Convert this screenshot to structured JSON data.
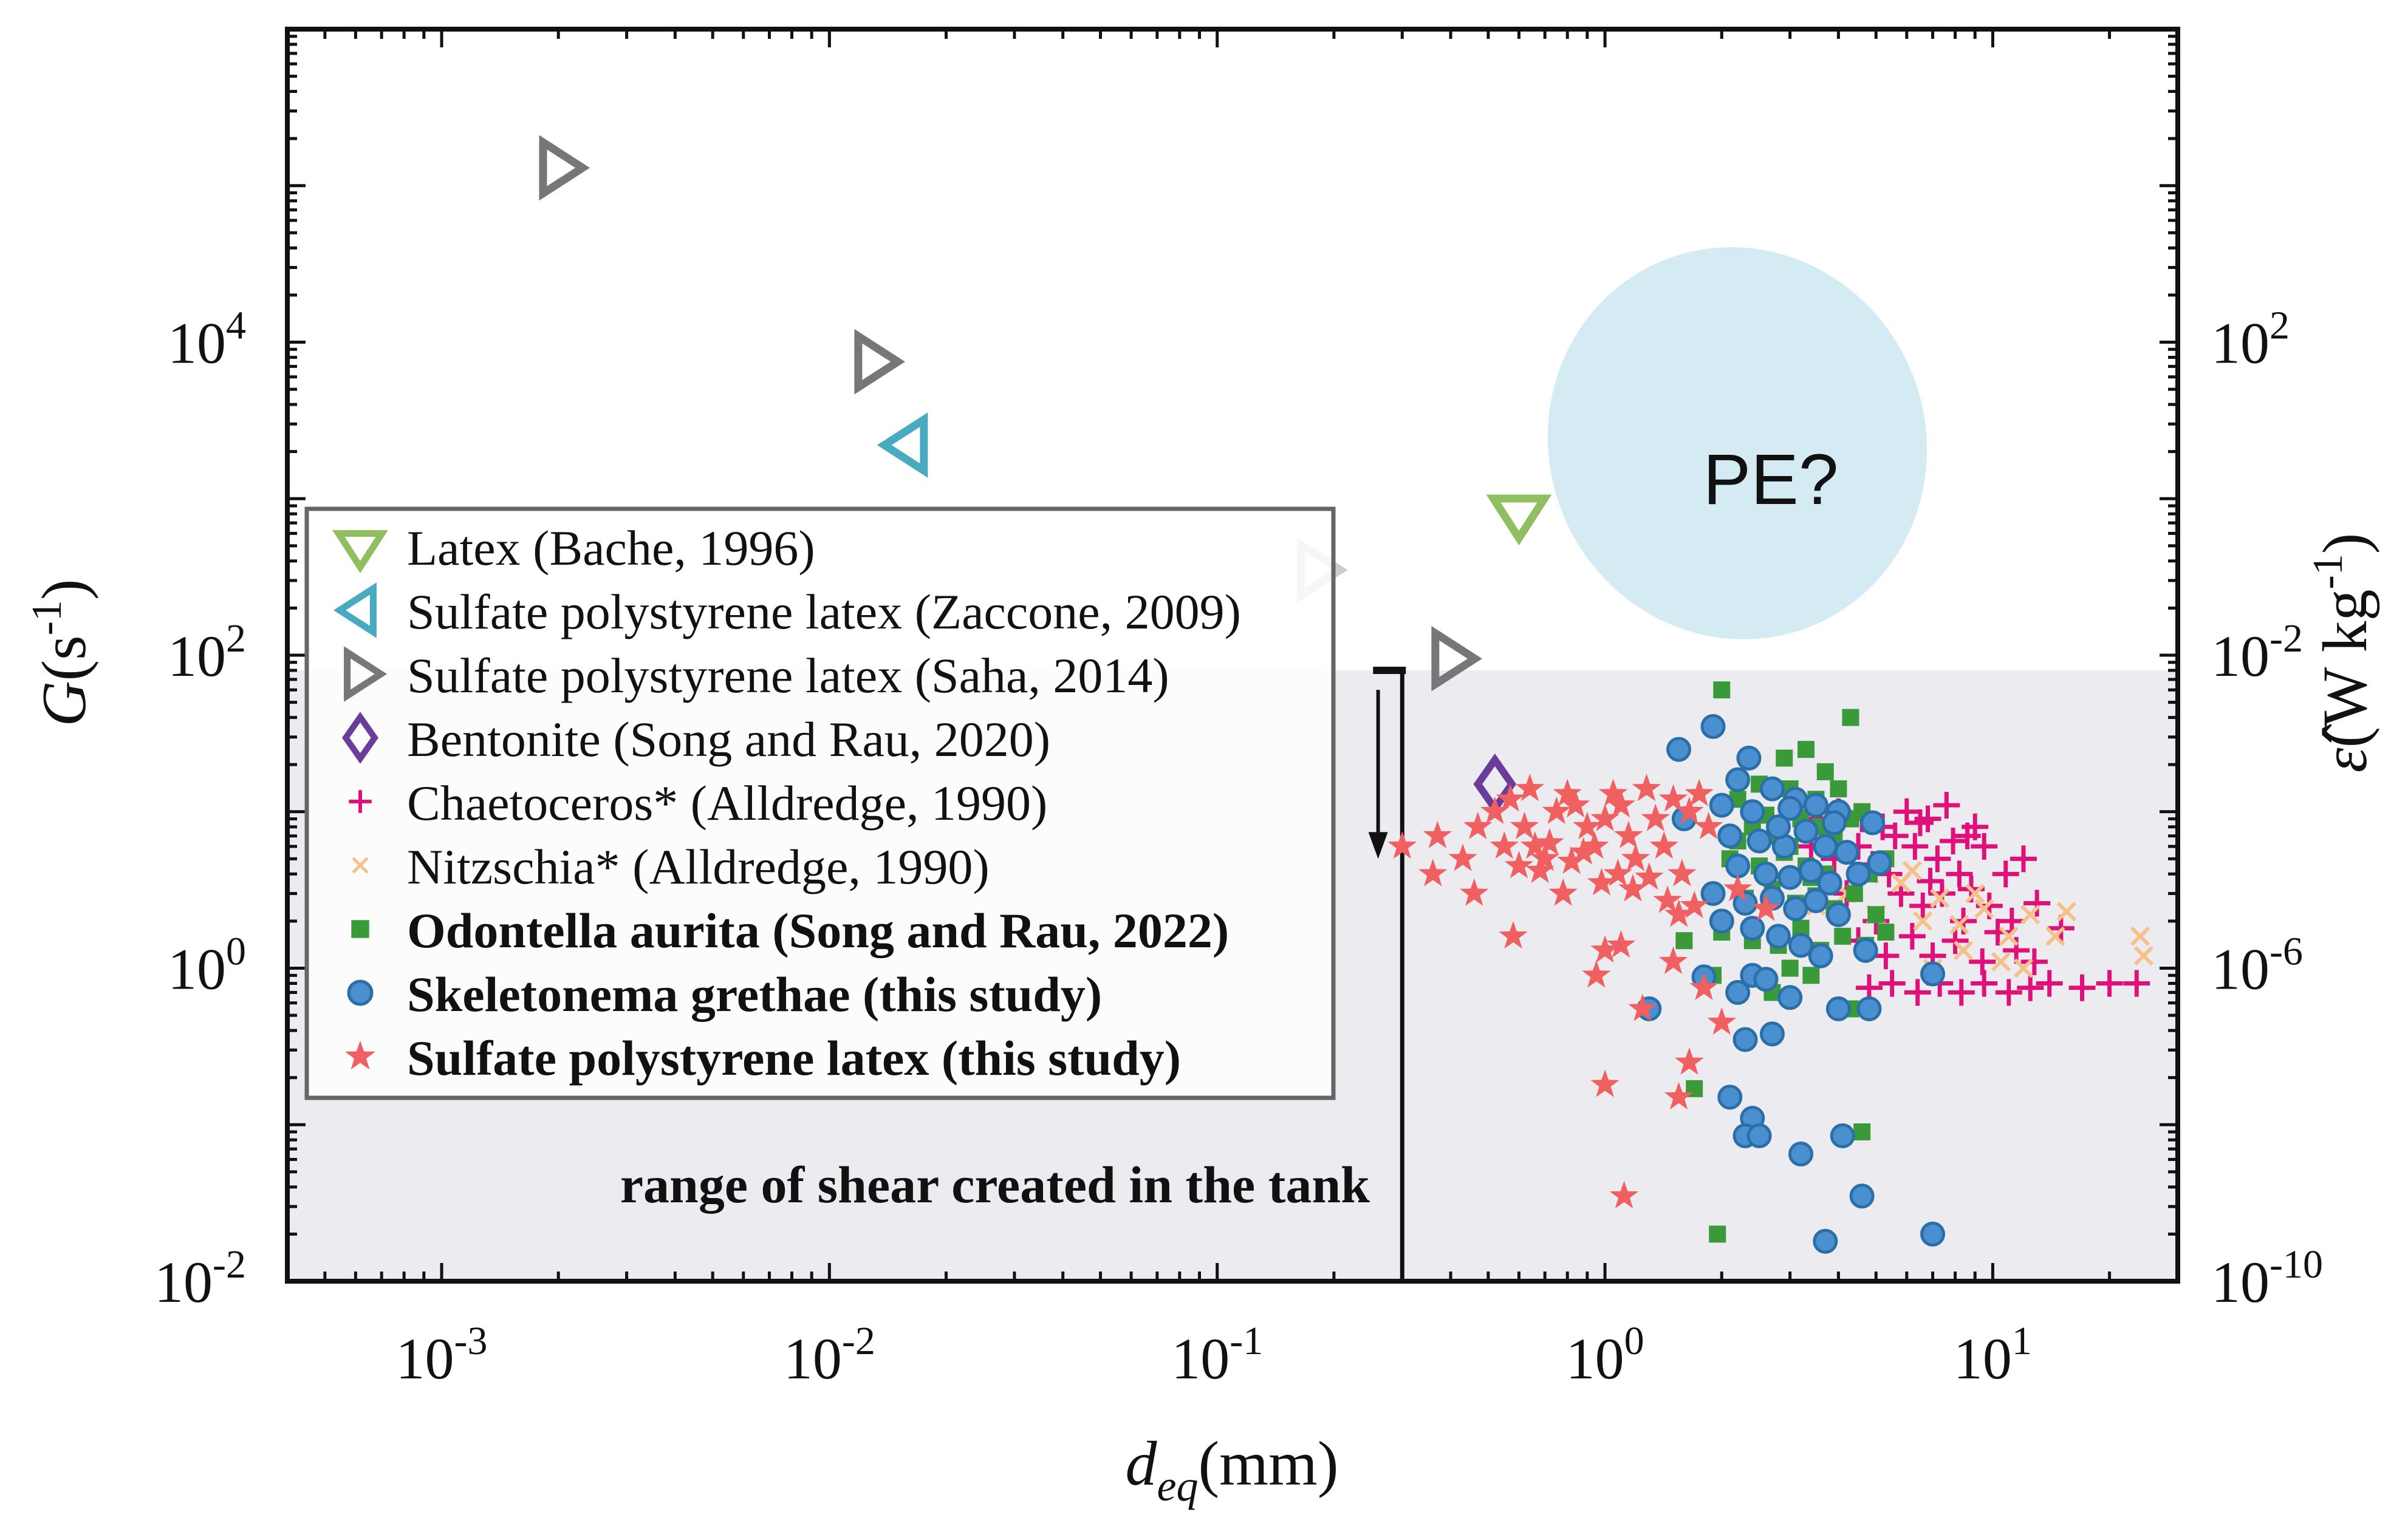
{
  "chart_data": {
    "type": "scatter",
    "title": "",
    "xlabel": {
      "main": "d",
      "sub": "eq",
      "unit": "(mm)"
    },
    "ylabel": {
      "main": "G",
      "unit": "(s",
      "sup": "-1",
      "close": ")"
    },
    "y2label": {
      "main": "ε̂",
      "unit": "(W kg",
      "sup": "-1",
      "close": ")"
    },
    "x_scale": "log",
    "y_scale": "log",
    "xlim": [
      0.0004,
      30
    ],
    "ylim": [
      0.01,
      1000000
    ],
    "x_ticks": [
      {
        "base": "10",
        "exp": "-3",
        "value": 0.001
      },
      {
        "base": "10",
        "exp": "-2",
        "value": 0.01
      },
      {
        "base": "10",
        "exp": "-1",
        "value": 0.1
      },
      {
        "base": "10",
        "exp": "0",
        "value": 1
      },
      {
        "base": "10",
        "exp": "1",
        "value": 10
      }
    ],
    "y_ticks": [
      {
        "base": "10",
        "exp": "-2",
        "value": 0.01
      },
      {
        "base": "10",
        "exp": "0",
        "value": 1
      },
      {
        "base": "10",
        "exp": "2",
        "value": 100
      },
      {
        "base": "10",
        "exp": "4",
        "value": 10000
      }
    ],
    "y2_ticks": [
      {
        "base": "10",
        "exp": "-10",
        "value": 0.01
      },
      {
        "base": "10",
        "exp": "-6",
        "value": 1
      },
      {
        "base": "10",
        "exp": "-2",
        "value": 100
      },
      {
        "base": "10",
        "exp": "2",
        "value": 10000
      }
    ],
    "shaded_region": {
      "label": "range of shear created in the tank",
      "x_min": 0.0004,
      "x_max": 30,
      "y_min": 0.01,
      "y_max": 80,
      "color": "#ececf0"
    },
    "tank_marker": {
      "x": 0.3,
      "y_top": 80,
      "arrow_x": 0.26,
      "arrow_from": 60,
      "arrow_to": 5
    },
    "pe_region": {
      "label": "PE?",
      "x_center": 2.8,
      "y_center": 1300,
      "color": "#d5ebf4"
    },
    "legend_position": "left-middle",
    "series": [
      {
        "name": "Latex (Bache, 1996)",
        "marker": "triangle-down",
        "color": "#8fbf60",
        "bold": false,
        "points": [
          [
            0.6,
            800
          ]
        ]
      },
      {
        "name": "Sulfate polystyrene latex (Zaccone, 2009)",
        "marker": "triangle-left",
        "color": "#4aaabf",
        "bold": false,
        "points": [
          [
            0.016,
            2200
          ]
        ]
      },
      {
        "name": "Sulfate polystyrene latex (Saha, 2014)",
        "marker": "triangle-right",
        "color": "#777777",
        "bold": false,
        "points": [
          [
            0.002,
            130000
          ],
          [
            0.013,
            7500
          ],
          [
            0.4,
            95
          ]
        ]
      },
      {
        "name": "_faint Saha point",
        "marker": "triangle-right",
        "color": "#cccccc",
        "bold": false,
        "legend": false,
        "points": [
          [
            0.18,
            350
          ]
        ]
      },
      {
        "name": "Bentonite (Song and Rau, 2020)",
        "marker": "diamond",
        "color": "#6a3d9a",
        "bold": false,
        "points": [
          [
            0.52,
            15
          ]
        ]
      },
      {
        "name": "Chaetoceros* (Alldredge, 1990)",
        "marker": "plus",
        "color": "#e0107a",
        "bold": false,
        "points": [
          [
            3.2,
            10
          ],
          [
            3.6,
            9
          ],
          [
            4.0,
            10
          ],
          [
            4.6,
            9
          ],
          [
            5.2,
            8
          ],
          [
            6.0,
            10
          ],
          [
            6.8,
            9
          ],
          [
            7.6,
            11
          ],
          [
            8.6,
            7
          ],
          [
            3.4,
            6
          ],
          [
            3.9,
            5
          ],
          [
            4.5,
            6
          ],
          [
            5.4,
            4
          ],
          [
            6.3,
            6
          ],
          [
            7.2,
            5
          ],
          [
            8.2,
            4
          ],
          [
            9.5,
            6
          ],
          [
            10.8,
            4
          ],
          [
            12.0,
            5
          ],
          [
            4.2,
            3
          ],
          [
            5.0,
            2
          ],
          [
            5.8,
            3
          ],
          [
            6.6,
            2.5
          ],
          [
            7.4,
            3
          ],
          [
            8.4,
            2
          ],
          [
            9.8,
            2.5
          ],
          [
            11.2,
            2
          ],
          [
            13.0,
            2.6
          ],
          [
            15.0,
            1.8
          ],
          [
            4.5,
            1.5
          ],
          [
            5.3,
            1.2
          ],
          [
            6.2,
            1.6
          ],
          [
            7.0,
            1.2
          ],
          [
            8.0,
            1.5
          ],
          [
            9.4,
            1.1
          ],
          [
            11.5,
            1.3
          ],
          [
            4.8,
            0.75
          ],
          [
            5.5,
            0.8
          ],
          [
            6.4,
            0.7
          ],
          [
            7.3,
            0.8
          ],
          [
            8.3,
            0.7
          ],
          [
            9.5,
            0.8
          ],
          [
            11.0,
            0.7
          ],
          [
            12.5,
            0.75
          ],
          [
            14.0,
            0.8
          ],
          [
            17.0,
            0.75
          ],
          [
            20.0,
            0.8
          ],
          [
            23.5,
            0.8
          ],
          [
            5.6,
            7
          ],
          [
            6.5,
            8.5
          ],
          [
            7.9,
            6.5
          ],
          [
            9.0,
            8
          ],
          [
            3.7,
            7.5
          ],
          [
            4.9,
            4.6
          ],
          [
            6.9,
            3.6
          ],
          [
            8.8,
            3.2
          ],
          [
            10.3,
            1.7
          ],
          [
            12.8,
            1.1
          ]
        ]
      },
      {
        "name": "Nitzschia* (Alldredge, 1990)",
        "marker": "x",
        "color": "#f5c08a",
        "bold": false,
        "points": [
          [
            3.5,
            2.5
          ],
          [
            4.2,
            3
          ],
          [
            5.0,
            2.2
          ],
          [
            5.8,
            3.5
          ],
          [
            6.6,
            2
          ],
          [
            7.3,
            2.8
          ],
          [
            8.2,
            1.9
          ],
          [
            9.5,
            2.4
          ],
          [
            11.0,
            1.6
          ],
          [
            12.5,
            2.2
          ],
          [
            14.5,
            1.6
          ],
          [
            7.0,
            1.0
          ],
          [
            8.4,
            1.3
          ],
          [
            10.5,
            1.1
          ],
          [
            12.0,
            1.0
          ],
          [
            24.0,
            1.6
          ],
          [
            24.5,
            1.2
          ],
          [
            6.2,
            4.2
          ],
          [
            4.8,
            4.0
          ],
          [
            9.0,
            3.0
          ],
          [
            15.5,
            2.3
          ]
        ]
      },
      {
        "name": "Odontella aurita (Song and Rau, 2022)",
        "marker": "square",
        "color": "#3a9a3a",
        "bold": true,
        "points": [
          [
            2.0,
            60
          ],
          [
            4.3,
            40
          ],
          [
            2.9,
            22
          ],
          [
            3.3,
            25
          ],
          [
            3.7,
            18
          ],
          [
            2.5,
            15
          ],
          [
            2.2,
            12
          ],
          [
            3.0,
            14
          ],
          [
            3.5,
            12
          ],
          [
            4.0,
            14
          ],
          [
            4.6,
            10
          ],
          [
            2.4,
            8
          ],
          [
            2.8,
            7
          ],
          [
            3.2,
            9
          ],
          [
            3.6,
            8
          ],
          [
            3.9,
            7
          ],
          [
            4.3,
            9
          ],
          [
            2.1,
            5
          ],
          [
            2.5,
            4.5
          ],
          [
            2.9,
            5.5
          ],
          [
            3.3,
            4.5
          ],
          [
            3.7,
            4
          ],
          [
            4.2,
            5.5
          ],
          [
            4.8,
            4
          ],
          [
            5.3,
            5
          ],
          [
            1.9,
            3
          ],
          [
            2.3,
            2.8
          ],
          [
            2.7,
            3.2
          ],
          [
            3.1,
            2.6
          ],
          [
            3.5,
            2.9
          ],
          [
            3.9,
            2.4
          ],
          [
            4.4,
            3
          ],
          [
            5.0,
            2.2
          ],
          [
            1.6,
            1.5
          ],
          [
            2.0,
            1.7
          ],
          [
            2.4,
            1.5
          ],
          [
            2.8,
            1.4
          ],
          [
            3.2,
            1.8
          ],
          [
            3.6,
            1.3
          ],
          [
            4.1,
            1.6
          ],
          [
            4.7,
            1.4
          ],
          [
            5.3,
            1.7
          ],
          [
            1.9,
            0.9
          ],
          [
            2.6,
            0.85
          ],
          [
            3.0,
            1.0
          ],
          [
            3.4,
            0.9
          ],
          [
            2.7,
            0.7
          ],
          [
            4.3,
            0.55
          ],
          [
            1.7,
            0.17
          ],
          [
            4.6,
            0.09
          ],
          [
            1.95,
            0.02
          ],
          [
            2.2,
            6.5
          ],
          [
            3.0,
            6
          ],
          [
            3.4,
            3.8
          ],
          [
            2.6,
            9.5
          ]
        ]
      },
      {
        "name": "Skeletonema grethae (this study)",
        "marker": "circle",
        "color": "#4a90d0",
        "bold": true,
        "points": [
          [
            1.9,
            35
          ],
          [
            1.55,
            25
          ],
          [
            2.35,
            22
          ],
          [
            2.2,
            16
          ],
          [
            2.7,
            14
          ],
          [
            3.1,
            12
          ],
          [
            3.5,
            11
          ],
          [
            2.0,
            11
          ],
          [
            2.4,
            10
          ],
          [
            4.0,
            10
          ],
          [
            4.9,
            8.5
          ],
          [
            2.1,
            7
          ],
          [
            2.5,
            6.5
          ],
          [
            2.9,
            6
          ],
          [
            3.3,
            7.5
          ],
          [
            3.7,
            6
          ],
          [
            4.2,
            5.5
          ],
          [
            5.1,
            4.7
          ],
          [
            2.2,
            4.5
          ],
          [
            2.6,
            4
          ],
          [
            3.0,
            3.8
          ],
          [
            3.4,
            4.2
          ],
          [
            3.8,
            3.5
          ],
          [
            4.5,
            4
          ],
          [
            1.9,
            3
          ],
          [
            2.3,
            2.6
          ],
          [
            2.7,
            2.8
          ],
          [
            3.1,
            2.4
          ],
          [
            3.5,
            2.7
          ],
          [
            4.0,
            2.2
          ],
          [
            2.0,
            2.0
          ],
          [
            2.4,
            1.8
          ],
          [
            2.8,
            1.6
          ],
          [
            3.2,
            1.4
          ],
          [
            3.6,
            1.2
          ],
          [
            4.7,
            1.3
          ],
          [
            1.8,
            0.88
          ],
          [
            2.4,
            0.9
          ],
          [
            2.6,
            0.85
          ],
          [
            3.0,
            0.65
          ],
          [
            2.2,
            0.7
          ],
          [
            4.0,
            0.55
          ],
          [
            4.8,
            0.55
          ],
          [
            7.0,
            0.92
          ],
          [
            1.3,
            0.55
          ],
          [
            2.3,
            0.35
          ],
          [
            2.7,
            0.38
          ],
          [
            2.1,
            0.15
          ],
          [
            2.4,
            0.11
          ],
          [
            2.3,
            0.085
          ],
          [
            2.5,
            0.085
          ],
          [
            3.2,
            0.065
          ],
          [
            4.1,
            0.085
          ],
          [
            4.6,
            0.035
          ],
          [
            3.7,
            0.018
          ],
          [
            7.0,
            0.02
          ],
          [
            1.6,
            9
          ],
          [
            3.0,
            10.5
          ],
          [
            3.9,
            8.5
          ],
          [
            2.8,
            8
          ]
        ]
      },
      {
        "name": "Sulfate polystyrene latex (this study)",
        "marker": "star",
        "color": "#f06060",
        "bold": true,
        "points": [
          [
            0.3,
            6
          ],
          [
            0.37,
            7
          ],
          [
            0.43,
            5
          ],
          [
            0.47,
            8
          ],
          [
            0.52,
            10
          ],
          [
            0.57,
            12
          ],
          [
            0.62,
            8
          ],
          [
            0.66,
            6
          ],
          [
            0.7,
            5
          ],
          [
            0.75,
            10
          ],
          [
            0.8,
            13
          ],
          [
            0.84,
            11
          ],
          [
            0.9,
            8
          ],
          [
            0.94,
            6
          ],
          [
            1.0,
            9
          ],
          [
            1.05,
            13
          ],
          [
            1.1,
            11
          ],
          [
            1.15,
            7
          ],
          [
            1.2,
            5
          ],
          [
            1.28,
            14
          ],
          [
            1.35,
            9
          ],
          [
            1.42,
            6
          ],
          [
            1.5,
            12
          ],
          [
            1.58,
            4
          ],
          [
            1.65,
            10
          ],
          [
            1.75,
            13
          ],
          [
            1.85,
            8
          ],
          [
            0.36,
            4
          ],
          [
            0.46,
            3
          ],
          [
            0.55,
            6
          ],
          [
            0.6,
            4.5
          ],
          [
            0.68,
            4.2
          ],
          [
            0.72,
            6.3
          ],
          [
            0.82,
            4.8
          ],
          [
            0.88,
            5.5
          ],
          [
            0.98,
            3.5
          ],
          [
            1.08,
            4
          ],
          [
            1.18,
            3.2
          ],
          [
            1.3,
            3.8
          ],
          [
            1.45,
            2.7
          ],
          [
            1.55,
            2.2
          ],
          [
            1.7,
            2.5
          ],
          [
            0.58,
            1.6
          ],
          [
            1.0,
            1.3
          ],
          [
            1.1,
            1.4
          ],
          [
            1.5,
            1.1
          ],
          [
            1.8,
            0.75
          ],
          [
            2.0,
            0.45
          ],
          [
            0.95,
            0.9
          ],
          [
            1.25,
            0.55
          ],
          [
            1.65,
            0.25
          ],
          [
            1.0,
            0.18
          ],
          [
            1.55,
            0.15
          ],
          [
            1.12,
            0.035
          ],
          [
            2.2,
            3.2
          ],
          [
            2.6,
            2.4
          ],
          [
            0.78,
            3.0
          ],
          [
            0.64,
            14
          ]
        ]
      }
    ]
  }
}
